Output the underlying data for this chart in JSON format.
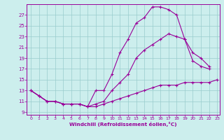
{
  "xlabel": "Windchill (Refroidissement éolien,°C)",
  "bg_color": "#cceeed",
  "line_color": "#990099",
  "grid_color": "#99cccc",
  "xlim_min": -0.5,
  "xlim_max": 23.3,
  "ylim_min": 8.5,
  "ylim_max": 29.0,
  "xticks": [
    0,
    1,
    2,
    3,
    4,
    5,
    6,
    7,
    8,
    9,
    10,
    11,
    12,
    13,
    14,
    15,
    16,
    17,
    18,
    19,
    20,
    21,
    22,
    23
  ],
  "yticks": [
    9,
    11,
    13,
    15,
    17,
    19,
    21,
    23,
    25,
    27
  ],
  "line1_x": [
    0,
    1,
    2,
    3,
    4,
    5,
    6,
    7,
    8,
    9,
    10,
    11,
    12,
    13,
    14,
    15,
    16,
    17,
    18,
    19,
    20,
    21,
    22,
    23
  ],
  "line1_y": [
    13,
    12,
    11,
    11,
    10.5,
    10.5,
    10.5,
    10,
    10,
    10.5,
    11,
    11.5,
    12,
    12.5,
    13,
    13.5,
    14,
    14,
    14,
    14.5,
    14.5,
    14.5,
    14.5,
    15
  ],
  "line2_x": [
    0,
    1,
    2,
    3,
    4,
    5,
    6,
    7,
    8,
    9,
    10,
    11,
    12,
    13,
    14,
    15,
    16,
    17,
    18,
    19,
    20,
    21,
    22
  ],
  "line2_y": [
    13,
    12,
    11,
    11,
    10.5,
    10.5,
    10.5,
    10,
    13,
    13,
    16,
    20,
    22.5,
    25.5,
    26.5,
    28.5,
    28.5,
    28,
    27,
    22.5,
    18.5,
    17.5,
    17
  ],
  "line3_x": [
    0,
    1,
    2,
    3,
    4,
    5,
    6,
    7,
    8,
    9,
    10,
    11,
    12,
    13,
    14,
    15,
    16,
    17,
    18,
    19,
    20,
    21,
    22
  ],
  "line3_y": [
    13,
    12,
    11,
    11,
    10.5,
    10.5,
    10.5,
    10,
    10.5,
    11,
    13,
    14.5,
    16,
    19,
    20.5,
    21.5,
    22.5,
    23.5,
    23,
    22.5,
    20,
    19,
    17.5
  ]
}
